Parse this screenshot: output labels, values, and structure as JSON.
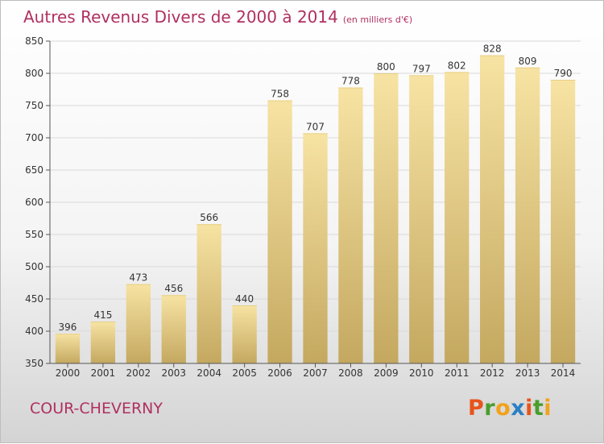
{
  "header": {
    "title": "Autres Revenus Divers de 2000 à 2014",
    "unit": "(en milliers d'€)"
  },
  "footer": {
    "commune": "COUR-CHEVERNY",
    "logo_text": "Proxiti",
    "logo_colors": [
      "#e8541b",
      "#4a9e2b",
      "#f2a21b",
      "#2b7fc4",
      "#e8541b",
      "#4a9e2b",
      "#f2a21b"
    ]
  },
  "colors": {
    "title": "#b0305f",
    "bar_top": "#f7e3a3",
    "bar_bottom": "#c4a860",
    "grid": "#d9d9d9",
    "axis": "#555555"
  },
  "chart_data": {
    "type": "bar",
    "title": "Autres Revenus Divers de 2000 à 2014",
    "subtitle": "(en milliers d'€)",
    "xlabel": "",
    "ylabel": "",
    "categories": [
      "2000",
      "2001",
      "2002",
      "2003",
      "2004",
      "2005",
      "2006",
      "2007",
      "2008",
      "2009",
      "2010",
      "2011",
      "2012",
      "2013",
      "2014"
    ],
    "values": [
      396,
      415,
      473,
      456,
      566,
      440,
      758,
      707,
      778,
      800,
      797,
      802,
      828,
      809,
      790
    ],
    "ylim": [
      350,
      850
    ],
    "yticks": [
      350,
      400,
      450,
      500,
      550,
      600,
      650,
      700,
      750,
      800,
      850
    ],
    "grid": true,
    "data_labels": true
  }
}
